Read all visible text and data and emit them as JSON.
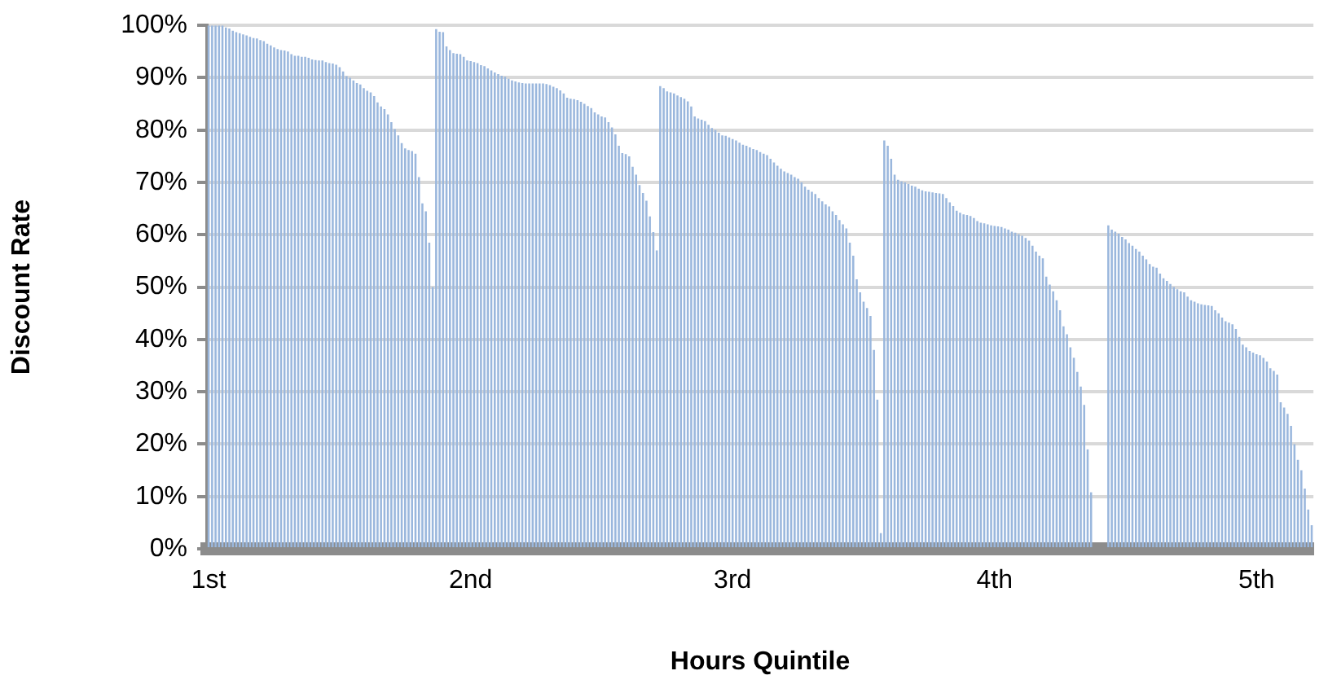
{
  "chart_data": {
    "type": "bar",
    "xlabel": "Hours Quintile",
    "ylabel": "Discount Rate",
    "categories": [
      "1st",
      null,
      null,
      null,
      null,
      null,
      null,
      null,
      null,
      null,
      null,
      null,
      null,
      null,
      null,
      null,
      null,
      null,
      null,
      null,
      null,
      null,
      null,
      null,
      null,
      null,
      null,
      null,
      null,
      null,
      null,
      null,
      null,
      null,
      null,
      null,
      null,
      null,
      null,
      null,
      null,
      null,
      null,
      null,
      null,
      null,
      null,
      null,
      null,
      null,
      null,
      null,
      null,
      null,
      null,
      null,
      null,
      null,
      null,
      null,
      null,
      null,
      null,
      null,
      null,
      null,
      null,
      null,
      null,
      null,
      null,
      null,
      null,
      null,
      null,
      null,
      "2nd",
      null,
      null,
      null,
      null,
      null,
      null,
      null,
      null,
      null,
      null,
      null,
      null,
      null,
      null,
      null,
      null,
      null,
      null,
      null,
      null,
      null,
      null,
      null,
      null,
      null,
      null,
      null,
      null,
      null,
      null,
      null,
      null,
      null,
      null,
      null,
      null,
      null,
      null,
      null,
      null,
      null,
      null,
      null,
      null,
      null,
      null,
      null,
      null,
      null,
      null,
      null,
      null,
      null,
      null,
      null,
      null,
      null,
      null,
      null,
      null,
      null,
      null,
      null,
      null,
      null,
      null,
      null,
      null,
      null,
      null,
      null,
      null,
      null,
      null,
      null,
      "3rd",
      null,
      null,
      null,
      null,
      null,
      null,
      null,
      null,
      null,
      null,
      null,
      null,
      null,
      null,
      null,
      null,
      null,
      null,
      null,
      null,
      null,
      null,
      null,
      null,
      null,
      null,
      null,
      null,
      null,
      null,
      null,
      null,
      null,
      null,
      null,
      null,
      null,
      null,
      null,
      null,
      null,
      null,
      null,
      null,
      null,
      null,
      null,
      null,
      null,
      null,
      null,
      null,
      null,
      null,
      null,
      null,
      null,
      null,
      null,
      null,
      null,
      null,
      null,
      null,
      null,
      null,
      null,
      null,
      null,
      null,
      null,
      null,
      null,
      null,
      null,
      "4th",
      null,
      null,
      null,
      null,
      null,
      null,
      null,
      null,
      null,
      null,
      null,
      null,
      null,
      null,
      null,
      null,
      null,
      null,
      null,
      null,
      null,
      null,
      null,
      null,
      null,
      null,
      null,
      null,
      null,
      null,
      null,
      null,
      null,
      null,
      null,
      null,
      null,
      null,
      null,
      null,
      null,
      null,
      null,
      null,
      null,
      null,
      null,
      null,
      null,
      null,
      null,
      null,
      null,
      null,
      null,
      null,
      null,
      null,
      null,
      null,
      null,
      null,
      null,
      null,
      null,
      null,
      null,
      null,
      null,
      null,
      null,
      null,
      null,
      null,
      null,
      "5th",
      null,
      null,
      null,
      null,
      null,
      null,
      null,
      null,
      null,
      null,
      null,
      null,
      null,
      null,
      null,
      null
    ],
    "values": [
      100,
      100,
      100,
      100,
      100,
      99.6,
      99.4,
      99,
      98.7,
      98.5,
      98.3,
      98.1,
      97.8,
      97.6,
      97.5,
      97.2,
      97,
      96.5,
      96.2,
      95.8,
      95.5,
      95.3,
      95.2,
      95,
      94.5,
      94.2,
      94.2,
      94,
      94,
      93.8,
      93.5,
      93.4,
      93.3,
      93.3,
      93,
      92.8,
      92.7,
      92.5,
      92,
      91.2,
      90.3,
      90,
      89.5,
      89,
      88.7,
      88,
      87.5,
      87.2,
      86.5,
      85.3,
      84.5,
      84,
      83,
      81.5,
      80.2,
      79,
      77.5,
      76.5,
      76.2,
      76,
      75.5,
      71,
      66,
      64.5,
      58.5,
      50,
      99.3,
      98.8,
      98.7,
      96,
      95.3,
      94.7,
      94.6,
      94.5,
      94,
      93.3,
      93.2,
      93,
      92.8,
      92.4,
      92.2,
      91.8,
      91.4,
      91,
      90.7,
      90.4,
      90.2,
      89.8,
      89.5,
      89.3,
      89.1,
      89,
      88.9,
      88.9,
      88.9,
      88.9,
      88.9,
      88.9,
      88.8,
      88.6,
      88.3,
      88,
      87.6,
      87,
      86.2,
      86,
      85.9,
      85.7,
      85.4,
      85,
      84.6,
      84.2,
      83.4,
      83,
      82.6,
      82.4,
      81.5,
      80.5,
      79.2,
      77,
      75.6,
      75.4,
      75,
      73,
      71.5,
      69.5,
      68,
      66.5,
      63.5,
      60.5,
      57,
      88.4,
      88,
      87.4,
      87.2,
      87,
      86.6,
      86.3,
      86,
      85.5,
      84.5,
      82.6,
      82.2,
      82,
      81.7,
      81,
      80.4,
      80,
      79.5,
      79,
      78.9,
      78.6,
      78.3,
      78,
      77.6,
      77.2,
      77,
      76.7,
      76.4,
      76.2,
      75.8,
      75.5,
      75.2,
      74.5,
      73.8,
      73.2,
      72.6,
      72.1,
      71.8,
      71.5,
      71,
      70.7,
      70,
      69.2,
      68.6,
      68.2,
      67.8,
      67,
      66.4,
      65.8,
      65.4,
      64.5,
      63.8,
      62.8,
      62,
      61.2,
      58.5,
      56,
      51.5,
      49,
      47.2,
      46,
      44.5,
      38,
      28.5,
      3,
      78,
      77,
      74.5,
      71.5,
      70.5,
      70.2,
      70,
      69.7,
      69.4,
      69.2,
      68.8,
      68.5,
      68.3,
      68.2,
      68.1,
      68,
      67.9,
      67.8,
      67,
      66.2,
      65.5,
      64.6,
      64.2,
      63.9,
      63.8,
      63.6,
      63.2,
      62.6,
      62.3,
      62.2,
      62,
      61.8,
      61.7,
      61.6,
      61.5,
      61.2,
      61,
      60.6,
      60.4,
      60.1,
      59.8,
      59.4,
      58.9,
      57.9,
      56.8,
      56,
      55.5,
      52,
      50.5,
      49.2,
      47.5,
      45.6,
      42.5,
      41,
      38.5,
      36.5,
      33.8,
      31,
      27.5,
      19,
      10.8,
      0,
      0,
      0,
      0,
      61.8,
      61,
      60.6,
      60.2,
      59.6,
      59.1,
      58.4,
      57.9,
      57.3,
      56.8,
      56,
      55.3,
      54.4,
      53.9,
      53.7,
      52.6,
      51.7,
      51.2,
      50.6,
      50,
      49.6,
      49.2,
      49,
      48.2,
      47.5,
      47.2,
      46.9,
      46.7,
      46.6,
      46.5,
      46.4,
      45.6,
      45,
      44.2,
      43.5,
      43.2,
      42.9,
      42,
      40.5,
      39,
      38.5,
      37.8,
      37.5,
      37.2,
      37,
      36.5,
      35.8,
      34.5,
      34,
      33.3,
      28,
      27,
      25.8,
      23.5,
      20,
      17,
      15,
      11.5,
      7.5,
      4.5
    ],
    "color": "#9ab7dd",
    "ylim": [
      0,
      100
    ],
    "yticks": [
      {
        "value": 0,
        "label": "0%"
      },
      {
        "value": 10,
        "label": "10%"
      },
      {
        "value": 20,
        "label": "20%"
      },
      {
        "value": 30,
        "label": "30%"
      },
      {
        "value": 40,
        "label": "40%"
      },
      {
        "value": 50,
        "label": "50%"
      },
      {
        "value": 60,
        "label": "60%"
      },
      {
        "value": 70,
        "label": "70%"
      },
      {
        "value": 80,
        "label": "80%"
      },
      {
        "value": 90,
        "label": "90%"
      },
      {
        "value": 100,
        "label": "100%"
      }
    ],
    "grid": "y",
    "legend": false
  }
}
